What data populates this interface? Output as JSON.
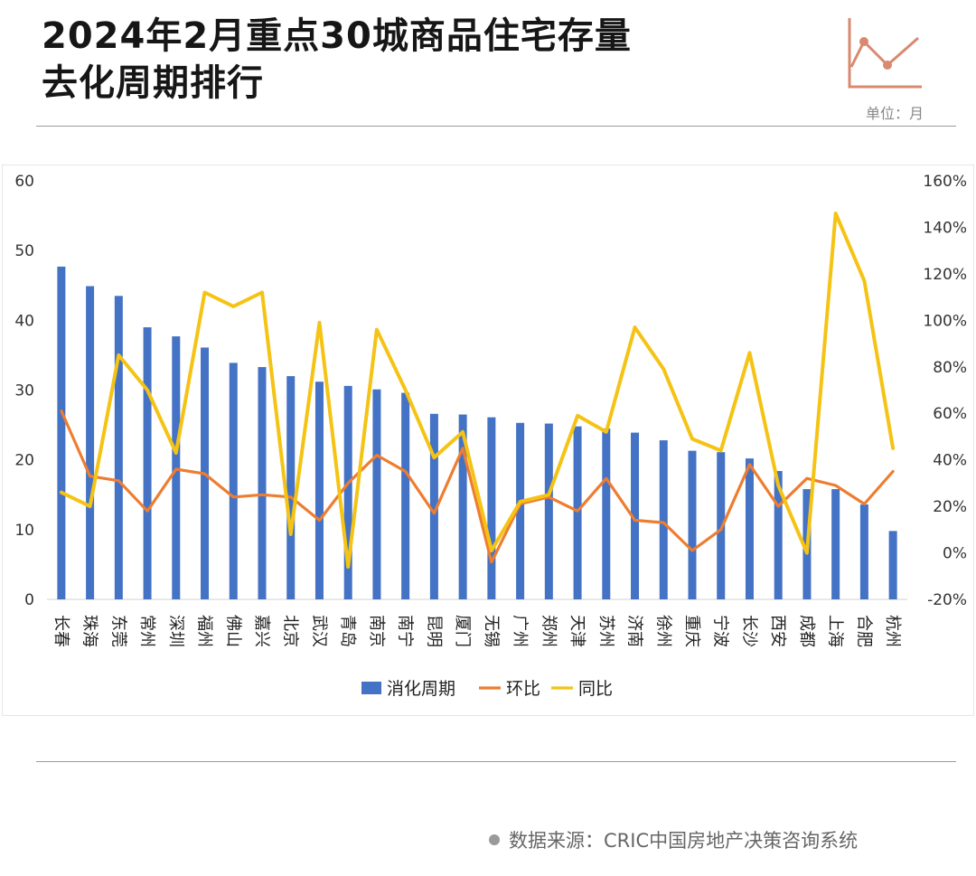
{
  "title": {
    "line1": "2024年2月重点30城商品住宅存量",
    "line2": "去化周期排行"
  },
  "unit": "单位：月",
  "source": "数据来源：CRIC中国房地产决策咨询系统",
  "colors": {
    "bar": "#4472C4",
    "mom": "#ED7D31",
    "yoy": "#F5C314",
    "icon": "#D9896F"
  },
  "chart_data": {
    "type": "bar+line",
    "title": "2024年2月重点30城商品住宅存量去化周期排行",
    "categories": [
      "长春",
      "珠海",
      "东莞",
      "常州",
      "深圳",
      "福州",
      "佛山",
      "嘉兴",
      "北京",
      "武汉",
      "青岛",
      "南京",
      "南宁",
      "昆明",
      "厦门",
      "无锡",
      "广州",
      "郑州",
      "天津",
      "苏州",
      "济南",
      "徐州",
      "重庆",
      "宁波",
      "长沙",
      "西安",
      "成都",
      "上海",
      "合肥",
      "杭州"
    ],
    "y_left": {
      "ylim": [
        0,
        60
      ],
      "ticks": [
        "0",
        "10",
        "20",
        "30",
        "40",
        "50",
        "60"
      ]
    },
    "y_right": {
      "ylim": [
        -20,
        160
      ],
      "ticks": [
        "-20%",
        "0%",
        "20%",
        "40%",
        "60%",
        "80%",
        "100%",
        "120%",
        "140%",
        "160%"
      ]
    },
    "series": [
      {
        "name": "消化周期",
        "type": "bar",
        "axis": "left",
        "values": [
          47.7,
          44.9,
          43.5,
          39.0,
          37.7,
          36.1,
          33.9,
          33.3,
          32.0,
          31.2,
          30.6,
          30.1,
          29.6,
          26.6,
          26.5,
          26.1,
          25.3,
          25.2,
          24.8,
          24.5,
          23.9,
          22.8,
          21.3,
          21.1,
          20.2,
          18.4,
          15.8,
          15.8,
          13.6,
          9.8
        ]
      },
      {
        "name": "环比",
        "type": "line",
        "axis": "right",
        "values": [
          61,
          33,
          31,
          18,
          36,
          34,
          24,
          25,
          24,
          14,
          30,
          42,
          35,
          17,
          45,
          -4,
          21,
          24,
          18,
          32,
          14,
          13,
          1,
          10,
          38,
          20,
          32,
          29,
          21,
          35
        ]
      },
      {
        "name": "同比",
        "type": "line",
        "axis": "right",
        "values": [
          26,
          20,
          85,
          70,
          43,
          112,
          106,
          112,
          8,
          99,
          -6,
          96,
          70,
          41,
          52,
          1,
          22,
          25,
          59,
          52,
          97,
          79,
          49,
          44,
          86,
          29,
          0,
          146,
          117,
          45
        ]
      }
    ],
    "legend": {
      "position": "bottom",
      "entries": [
        "消化周期",
        "环比",
        "同比"
      ]
    },
    "grid": false
  }
}
